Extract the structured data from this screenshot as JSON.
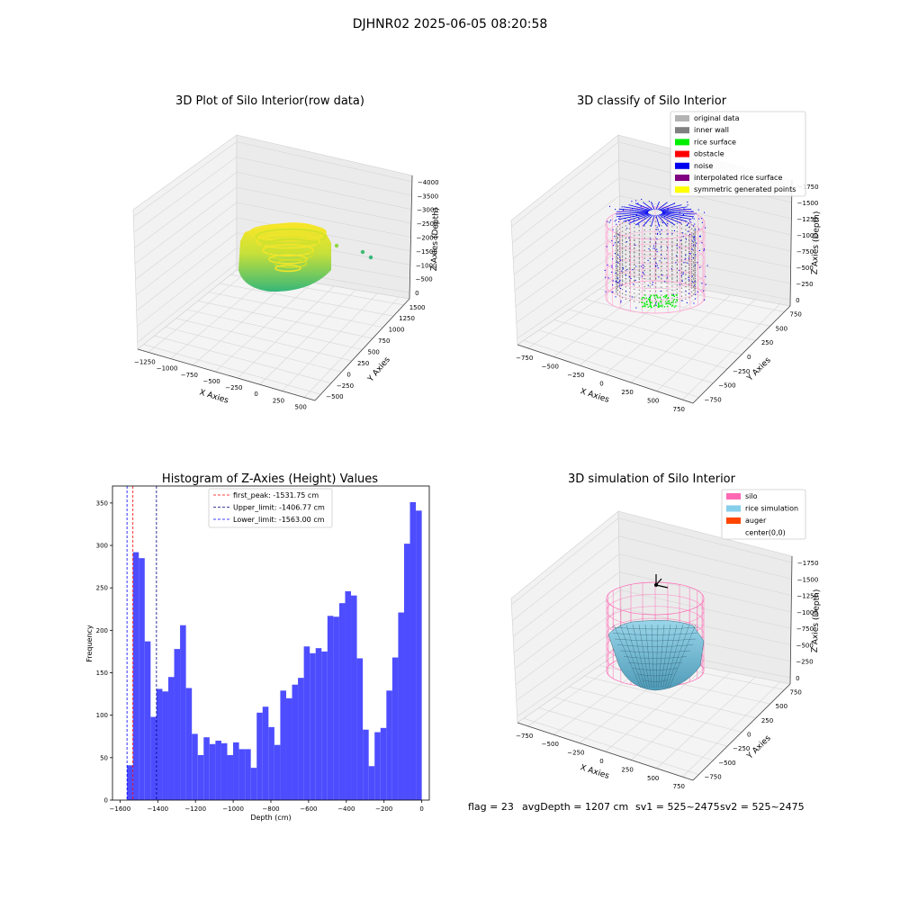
{
  "figure": {
    "suptitle": "DJHNR02 2025-06-05 08:20:58",
    "footer": {
      "flag": "flag = 23",
      "avg": "avgDepth = 1207 cm",
      "sv1": "sv1 = 525~2475",
      "sv2": "sv2 = 525~2475"
    }
  },
  "panels": {
    "raw": {
      "title": "3D Plot of Silo Interior(row data)",
      "xlabel": "X Axies",
      "ylabel": "Y Axies",
      "zlabel": "Z Axies (Depth)",
      "xticks": [
        "−1250",
        "−1000",
        "−750",
        "−500",
        "−250",
        "0",
        "250",
        "500"
      ],
      "yticks": [
        "−500",
        "−250",
        "0",
        "250",
        "500",
        "750",
        "1000",
        "1250",
        "1500"
      ],
      "zticks": [
        "0",
        "−500",
        "−1000",
        "−1500",
        "−2000",
        "−2500",
        "−3000",
        "−3500",
        "−4000"
      ],
      "colors": {
        "high": "#fde725",
        "mid": "#8fd744",
        "low": "#35b779"
      }
    },
    "classify": {
      "title": "3D classify of Silo Interior",
      "xlabel": "X Axies",
      "ylabel": "Y Axies",
      "zlabel": "Z Axies (Depth)",
      "xticks": [
        "−750",
        "−500",
        "−250",
        "0",
        "250",
        "500",
        "750"
      ],
      "yticks": [
        "−750",
        "−500",
        "−250",
        "0",
        "250",
        "500",
        "750"
      ],
      "zticks": [
        "0",
        "−250",
        "−500",
        "−750",
        "−1000",
        "−1250",
        "−1500",
        "−1750"
      ],
      "legend": [
        {
          "label": "original data",
          "color": "#b3b3b3"
        },
        {
          "label": "inner wall",
          "color": "#808080"
        },
        {
          "label": "rice surface",
          "color": "#00ee00"
        },
        {
          "label": "obstacle",
          "color": "#ff0000"
        },
        {
          "label": "noise",
          "color": "#0000ee"
        },
        {
          "label": "interpolated rice surface",
          "color": "#800080"
        },
        {
          "label": "symmetric generated points",
          "color": "#ffff00"
        }
      ],
      "silo_color": "#ff99cc"
    },
    "simulation": {
      "title": "3D simulation of Silo Interior",
      "xlabel": "X Axies",
      "ylabel": "Y Axies",
      "zlabel": "Z Axies (Depth)",
      "xticks": [
        "−750",
        "−500",
        "−250",
        "0",
        "250",
        "500",
        "750"
      ],
      "yticks": [
        "−750",
        "−500",
        "−250",
        "0",
        "250",
        "500",
        "750"
      ],
      "zticks": [
        "0",
        "−250",
        "−500",
        "−750",
        "−1000",
        "−1250",
        "−1500",
        "−1750"
      ],
      "legend": [
        {
          "label": "silo",
          "color": "#ff69b4"
        },
        {
          "label": "rice simulation",
          "color": "#87ceeb"
        },
        {
          "label": "auger",
          "color": "#ff4500"
        },
        {
          "label": "center(0,0)",
          "color": "#ffffff"
        }
      ]
    }
  },
  "chart_data": {
    "type": "bar",
    "title": "Histogram of Z-Axies (Height) Values",
    "xlabel": "Depth (cm)",
    "ylabel": "Frequency",
    "xlim": [
      -1640,
      40
    ],
    "ylim": [
      0,
      370
    ],
    "xticks": [
      -1600,
      -1400,
      -1200,
      -1000,
      -800,
      -600,
      -400,
      -200,
      0
    ],
    "xtick_labels": [
      "−1600",
      "−1400",
      "−1200",
      "−1000",
      "−800",
      "−600",
      "−400",
      "−200",
      "0"
    ],
    "yticks": [
      0,
      50,
      100,
      150,
      200,
      250,
      300,
      350
    ],
    "bar_color": "#4d4dff",
    "bin_start": -1563,
    "bin_width": 31.26,
    "values": [
      41,
      292,
      285,
      187,
      98,
      131,
      128,
      145,
      178,
      206,
      132,
      78,
      53,
      74,
      66,
      70,
      67,
      53,
      68,
      60,
      60,
      38,
      103,
      110,
      86,
      65,
      129,
      120,
      136,
      144,
      181,
      173,
      179,
      175,
      217,
      216,
      232,
      246,
      241,
      167,
      83,
      40,
      80,
      85,
      129,
      168,
      221,
      302,
      351,
      341
    ],
    "vlines": [
      {
        "x": -1531.75,
        "color": "#ff0000",
        "label": "first_peak: -1531.75 cm"
      },
      {
        "x": -1406.77,
        "color": "#000080",
        "label": "Upper_limit: -1406.77 cm"
      },
      {
        "x": -1563.0,
        "color": "#0000ff",
        "label": "Lower_limit: -1563.00 cm"
      }
    ],
    "legend_position": "upper-center"
  }
}
